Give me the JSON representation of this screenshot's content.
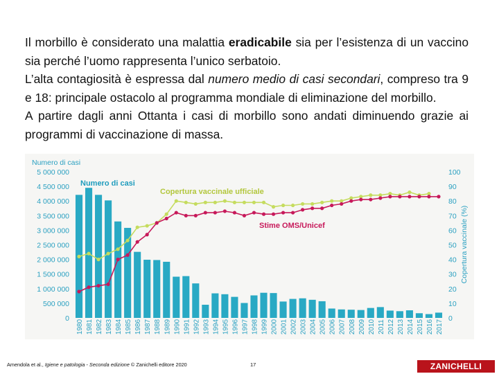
{
  "text": {
    "p1_a": "Il morbillo è considerato una malattia ",
    "p1_b": "eradicabile",
    "p1_c": " sia per l’esistenza di un vaccino sia perché l’uomo rappresenta l’unico serbatoio.",
    "p2_a": "L’alta contagiosità è espressa dal ",
    "p2_b": "numero medio di casi secondari",
    "p2_c": ", compreso tra 9 e 18: principale ostacolo al programma mondiale di eliminazione del morbillo.",
    "p3": "A partire dagli anni Ottanta i casi di morbillo sono andati diminuendo grazie ai programmi di vaccinazione di massa."
  },
  "chart_data": {
    "type": "bar",
    "title": "",
    "ylabel_left": "Numero di casi",
    "ylabel_right": "Copertura vaccinale (%)",
    "ylim_left": [
      0,
      5000000
    ],
    "ylim_right": [
      0,
      100
    ],
    "yticks_left": [
      "0",
      "500 000",
      "1 000 000",
      "1 500 000",
      "2 000 000",
      "2 500 000",
      "3 000 000",
      "3 500 000",
      "4 000 000",
      "4 500 000",
      "5 000 000"
    ],
    "yticks_right": [
      "0",
      "10",
      "20",
      "30",
      "40",
      "50",
      "60",
      "70",
      "80",
      "90",
      "100"
    ],
    "categories": [
      "1980",
      "1981",
      "1982",
      "1983",
      "1984",
      "1985",
      "1986",
      "1987",
      "1988",
      "1989",
      "1990",
      "1991",
      "1992",
      "1993",
      "1994",
      "1995",
      "1996",
      "1997",
      "1998",
      "1999",
      "2000",
      "2001",
      "2002",
      "2003",
      "2004",
      "2005",
      "2006",
      "2007",
      "2008",
      "2009",
      "2010",
      "2011",
      "2012",
      "2013",
      "2014",
      "2015",
      "2016",
      "2017"
    ],
    "series": [
      {
        "name": "Numero di casi",
        "axis": "left",
        "color": "#29a9c4",
        "values": [
          4210000,
          4450000,
          4210000,
          4020000,
          3300000,
          3080000,
          2260000,
          1990000,
          1980000,
          1920000,
          1410000,
          1430000,
          1180000,
          450000,
          840000,
          810000,
          720000,
          510000,
          770000,
          860000,
          850000,
          560000,
          650000,
          670000,
          620000,
          570000,
          320000,
          290000,
          280000,
          270000,
          340000,
          370000,
          250000,
          230000,
          260000,
          160000,
          130000,
          180000
        ]
      },
      {
        "name": "Copertura vaccinale ufficiale",
        "axis": "right",
        "color": "#c5dc5e",
        "values": [
          42,
          44,
          40,
          44,
          47,
          53,
          62,
          63,
          65,
          71,
          80,
          79,
          78,
          79,
          79,
          80,
          79,
          79,
          79,
          79,
          76,
          77,
          77,
          78,
          78,
          79,
          80,
          80,
          82,
          83,
          84,
          84,
          85,
          84,
          86,
          84,
          85,
          null
        ]
      },
      {
        "name": "Stime OMS/Unicef",
        "axis": "right",
        "color": "#c7195a",
        "values": [
          18,
          21,
          22,
          23,
          40,
          43,
          52,
          57,
          65,
          68,
          72,
          70,
          70,
          72,
          72,
          73,
          72,
          70,
          72,
          71,
          71,
          72,
          72,
          74,
          75,
          75,
          77,
          78,
          80,
          81,
          81,
          82,
          83,
          83,
          83,
          83,
          83,
          83
        ]
      }
    ],
    "annotations": [
      {
        "label": "Numero di casi",
        "color": "#1f9cbd"
      },
      {
        "label": "Copertura vaccinale ufficiale",
        "color": "#b3c73d"
      },
      {
        "label": "Stime OMS/Unicef",
        "color": "#c7195a"
      }
    ]
  },
  "footer": {
    "credit_a": "Amendola et al., ",
    "credit_b": "Igiene e patologia - Seconda edizione",
    "credit_c": " © Zanichelli editore 2020",
    "page": "17",
    "brand": "ZANICHELLI"
  }
}
